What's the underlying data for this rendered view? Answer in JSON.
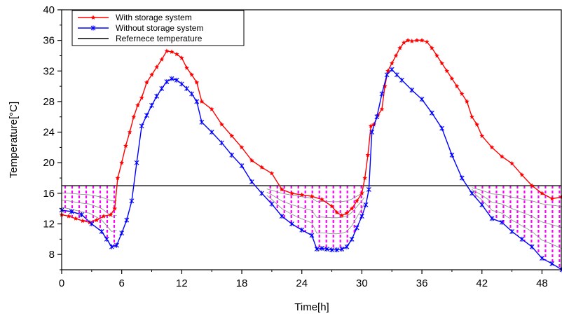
{
  "chart_data": {
    "type": "line",
    "xlabel": "Time[h]",
    "ylabel": "Temperature[°C]",
    "xlim": [
      0,
      50
    ],
    "ylim": [
      6,
      40
    ],
    "xticks": [
      0,
      6,
      12,
      18,
      24,
      30,
      36,
      42,
      48
    ],
    "yticks": [
      8,
      12,
      16,
      20,
      24,
      28,
      32,
      36,
      40
    ],
    "grid": false,
    "legend_position": "top-left",
    "series": [
      {
        "name": "With storage system",
        "color": "#ff0000",
        "marker": "star",
        "x": [
          0,
          0.7,
          1.4,
          2.1,
          2.8,
          3.5,
          4.2,
          4.9,
          5.3,
          5.6,
          6.0,
          6.4,
          6.8,
          7.2,
          7.6,
          8.0,
          8.5,
          9.0,
          9.5,
          10.0,
          10.5,
          11.0,
          11.5,
          12.0,
          12.5,
          13.0,
          13.5,
          14.0,
          15.0,
          16.0,
          17.0,
          18.0,
          19.0,
          20.0,
          21.0,
          22.0,
          23.0,
          24.0,
          25.0,
          26.0,
          27.0,
          27.5,
          28.0,
          28.5,
          29.0,
          29.5,
          30.0,
          30.3,
          30.6,
          30.9,
          31.2,
          31.6,
          32.0,
          32.3,
          32.6,
          33.0,
          33.4,
          33.8,
          34.2,
          34.6,
          35.0,
          35.5,
          36.0,
          36.5,
          37.0,
          37.5,
          38.0,
          38.5,
          39.0,
          39.5,
          40.0,
          40.5,
          41.0,
          41.5,
          42.0,
          43.0,
          44.0,
          45.0,
          46.0,
          47.0,
          48.0,
          49.0,
          50.0
        ],
        "y": [
          13.2,
          13.0,
          12.7,
          12.4,
          12.2,
          12.5,
          13.0,
          13.2,
          14.0,
          18.0,
          20.0,
          22.2,
          24.0,
          26.0,
          27.5,
          28.5,
          30.5,
          31.5,
          32.5,
          33.5,
          34.6,
          34.5,
          34.2,
          33.7,
          32.4,
          31.5,
          30.5,
          28.0,
          27.0,
          25.0,
          23.5,
          22.0,
          20.3,
          19.4,
          18.6,
          16.5,
          16.0,
          15.8,
          15.6,
          15.2,
          14.3,
          13.5,
          13.1,
          13.4,
          14.0,
          15.0,
          16.0,
          18.0,
          21.0,
          24.8,
          25.0,
          26.2,
          27.0,
          30.0,
          32.0,
          33.0,
          34.0,
          35.0,
          35.7,
          36.0,
          35.9,
          36.0,
          36.0,
          35.8,
          35.0,
          34.0,
          33.0,
          32.0,
          31.0,
          30.0,
          29.0,
          28.0,
          26.0,
          25.0,
          23.5,
          22.0,
          20.8,
          19.9,
          18.4,
          17.0,
          16.0,
          15.3,
          15.5
        ]
      },
      {
        "name": "Without storage system",
        "color": "#0000ff",
        "marker": "x",
        "x": [
          0,
          1.0,
          2.0,
          3.0,
          4.0,
          4.5,
          5.0,
          5.5,
          6.0,
          6.5,
          7.0,
          7.5,
          8.0,
          8.5,
          9.0,
          9.5,
          10.0,
          10.5,
          11.0,
          11.5,
          12.0,
          12.5,
          13.0,
          13.5,
          14.0,
          15.0,
          16.0,
          17.0,
          18.0,
          19.0,
          20.0,
          21.0,
          22.0,
          23.0,
          24.0,
          25.0,
          25.5,
          26.0,
          26.5,
          27.0,
          27.5,
          28.0,
          28.5,
          29.0,
          29.5,
          30.0,
          30.4,
          30.7,
          31.0,
          31.5,
          32.0,
          32.5,
          33.0,
          33.5,
          34.0,
          35.0,
          36.0,
          37.0,
          38.0,
          39.0,
          40.0,
          41.0,
          42.0,
          43.0,
          44.0,
          45.0,
          46.0,
          47.0,
          48.0,
          49.0,
          50.0
        ],
        "y": [
          13.8,
          13.6,
          13.2,
          12.0,
          11.0,
          10.0,
          9.0,
          9.2,
          10.8,
          12.5,
          15.0,
          20.0,
          24.8,
          26.2,
          27.5,
          28.7,
          29.7,
          30.6,
          31.0,
          30.8,
          30.3,
          29.7,
          29.0,
          28.0,
          25.3,
          24.0,
          22.6,
          21.0,
          19.6,
          17.5,
          16.0,
          14.6,
          13.0,
          12.0,
          11.2,
          10.5,
          8.7,
          8.8,
          8.7,
          8.6,
          8.6,
          8.7,
          9.0,
          10.0,
          11.5,
          13.0,
          14.5,
          16.5,
          24.0,
          26.0,
          29.0,
          31.5,
          32.2,
          31.5,
          30.8,
          29.5,
          28.3,
          26.5,
          24.5,
          21.0,
          18.0,
          16.0,
          14.5,
          12.7,
          12.2,
          11.0,
          10.0,
          9.0,
          7.5,
          6.8,
          6.0
        ]
      },
      {
        "name": "Refernece temperature",
        "color": "#000000",
        "marker": "none",
        "x": [
          0,
          50
        ],
        "y": [
          17,
          17
        ]
      }
    ],
    "fill_regions": [
      {
        "x_start": 0,
        "x_end": 5.5,
        "style": "dashed-vertical",
        "color": "#ff00ff"
      },
      {
        "x_start": 20.5,
        "x_end": 30.3,
        "style": "dashed-vertical",
        "color": "#ff00ff"
      },
      {
        "x_start": 41.0,
        "x_end": 50.0,
        "style": "dashed-vertical",
        "color": "#ff00ff"
      }
    ]
  }
}
